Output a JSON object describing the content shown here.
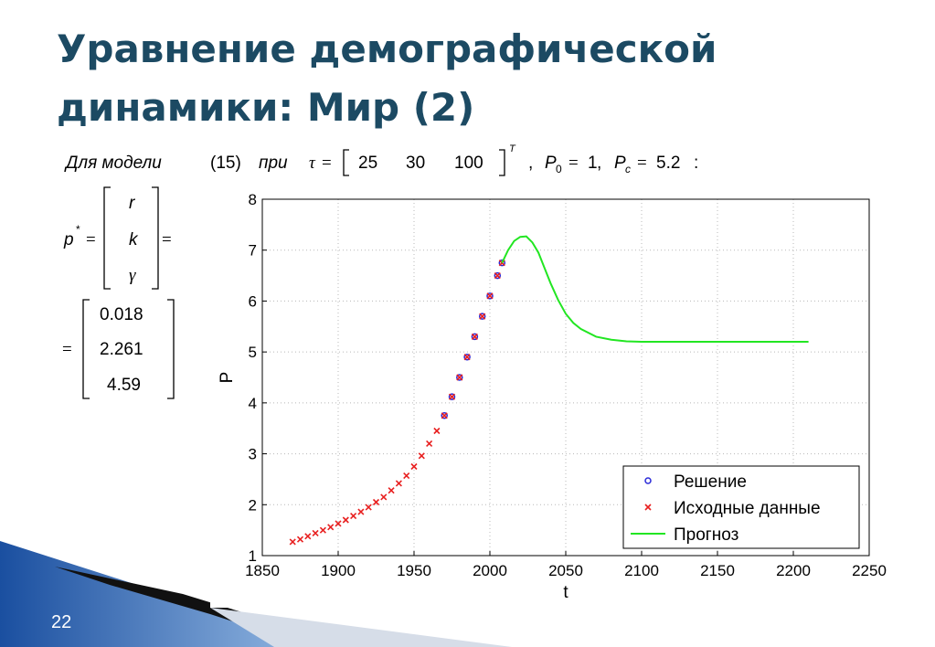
{
  "slide": {
    "title_lines": [
      "Уравнение демографической",
      "динамики: Мир (2)"
    ],
    "formula": {
      "prefix": "Для модели",
      "ref": "(15)",
      "when": "при",
      "tau": "τ",
      "equals": "=",
      "tau_values": [
        25,
        30,
        100
      ],
      "transpose": "T",
      "comma": ",",
      "params": [
        {
          "symbol": "P",
          "sub": "0",
          "value": 1
        },
        {
          "symbol": "P",
          "sub": "c",
          "value": 5.2
        }
      ],
      "colon": ":"
    },
    "matrix": {
      "symbol": "p",
      "sup": "*",
      "equals": "=",
      "entries": [
        "r",
        "k",
        "γ"
      ],
      "values": [
        0.018,
        2.261,
        4.59
      ]
    },
    "page_number": "22"
  },
  "chart_data": {
    "type": "line",
    "xlabel": "t",
    "ylabel": "P",
    "xlim": [
      1850,
      2250
    ],
    "xticks": [
      1850,
      1900,
      1950,
      2000,
      2050,
      2100,
      2150,
      2200,
      2250
    ],
    "ylim": [
      1,
      8
    ],
    "yticks": [
      1,
      2,
      3,
      4,
      5,
      6,
      7,
      8
    ],
    "grid": true,
    "legend": "lower right",
    "series": [
      {
        "name": "Решение",
        "color": "#2a2ad8",
        "marker": "circle",
        "x": [
          1970,
          1975,
          1980,
          1985,
          1990,
          1995,
          2000,
          2005,
          2008
        ],
        "values": [
          3.75,
          4.12,
          4.5,
          4.9,
          5.3,
          5.7,
          6.1,
          6.5,
          6.75
        ]
      },
      {
        "name": "Исходные данные",
        "color": "#e82020",
        "marker": "cross",
        "x": [
          1870,
          1875,
          1880,
          1885,
          1890,
          1895,
          1900,
          1905,
          1910,
          1915,
          1920,
          1925,
          1930,
          1935,
          1940,
          1945,
          1950,
          1955,
          1960,
          1965,
          1970,
          1975,
          1980,
          1985,
          1990,
          1995,
          2000,
          2005,
          2008
        ],
        "values": [
          1.27,
          1.32,
          1.38,
          1.44,
          1.5,
          1.56,
          1.63,
          1.7,
          1.78,
          1.86,
          1.95,
          2.05,
          2.15,
          2.28,
          2.42,
          2.57,
          2.75,
          2.96,
          3.2,
          3.45,
          3.75,
          4.12,
          4.5,
          4.9,
          5.3,
          5.7,
          6.1,
          6.5,
          6.75
        ]
      },
      {
        "name": "Прогноз",
        "color": "#22e622",
        "marker": "none",
        "x": [
          2008,
          2012,
          2016,
          2020,
          2024,
          2028,
          2032,
          2036,
          2040,
          2045,
          2050,
          2055,
          2060,
          2070,
          2080,
          2090,
          2100,
          2150,
          2210
        ],
        "values": [
          6.75,
          7.0,
          7.18,
          7.26,
          7.27,
          7.15,
          6.95,
          6.65,
          6.35,
          6.02,
          5.75,
          5.57,
          5.45,
          5.3,
          5.24,
          5.21,
          5.2,
          5.2,
          5.2
        ]
      }
    ]
  }
}
